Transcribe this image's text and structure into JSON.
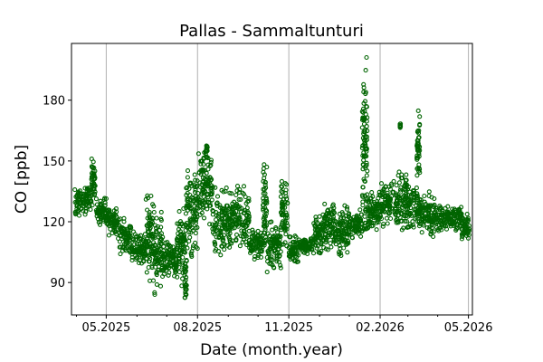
{
  "chart_data": {
    "type": "scatter",
    "title": "Pallas - Sammaltunturi",
    "xlabel": "Date (month.year)",
    "ylabel": "CO [ppb]",
    "x_units": "days since 01.05.2025",
    "xlim": [
      -35,
      369
    ],
    "ylim": [
      74,
      208
    ],
    "grid": "vertical major gridlines",
    "color": "#006400",
    "y_ticks": [
      90,
      120,
      150,
      180
    ],
    "x_ticks": [
      {
        "day": 0,
        "label": "05.2025"
      },
      {
        "day": 92,
        "label": "08.2025"
      },
      {
        "day": 184,
        "label": "11.2025"
      },
      {
        "day": 276,
        "label": "02.2026"
      },
      {
        "day": 365,
        "label": "05.2026"
      }
    ],
    "x_minor_ticks": [
      -30,
      31,
      61,
      123,
      153,
      215,
      245,
      304,
      334
    ],
    "series": [
      {
        "name": "CO",
        "envelope_segments_day_low_high": [
          [
            -32,
            -20,
            123,
            137
          ],
          [
            -20,
            -15,
            126,
            138
          ],
          [
            -15,
            -11,
            128,
            153
          ],
          [
            -10,
            0,
            118,
            132
          ],
          [
            0,
            12,
            113,
            127
          ],
          [
            12,
            25,
            104,
            122
          ],
          [
            25,
            40,
            99,
            116
          ],
          [
            40,
            48,
            90,
            133
          ],
          [
            48,
            57,
            84,
            125
          ],
          [
            57,
            71,
            92,
            110
          ],
          [
            71,
            80,
            88,
            128
          ],
          [
            79,
            81,
            80,
            100
          ],
          [
            80,
            92,
            100,
            148
          ],
          [
            92,
            107,
            118,
            156
          ],
          [
            100,
            102,
            150,
            160
          ],
          [
            107,
            126,
            103,
            138
          ],
          [
            126,
            144,
            107,
            138
          ],
          [
            144,
            158,
            101,
            118
          ],
          [
            158,
            162,
            105,
            149
          ],
          [
            162,
            176,
            95,
            120
          ],
          [
            176,
            183,
            108,
            140
          ],
          [
            184,
            194,
            100,
            113
          ],
          [
            194,
            208,
            104,
            112
          ],
          [
            208,
            217,
            104,
            123
          ],
          [
            217,
            231,
            106,
            130
          ],
          [
            231,
            244,
            103,
            128
          ],
          [
            244,
            258,
            112,
            126
          ],
          [
            258,
            263,
            112,
            202
          ],
          [
            263,
            276,
            115,
            135
          ],
          [
            276,
            294,
            117,
            140
          ],
          [
            294,
            303,
            116,
            145
          ],
          [
            296,
            297,
            166,
            169
          ],
          [
            303,
            317,
            115,
            140
          ],
          [
            313,
            316,
            140,
            177
          ],
          [
            317,
            331,
            112,
            135
          ],
          [
            331,
            358,
            115,
            128
          ],
          [
            358,
            366,
            110,
            124
          ]
        ]
      }
    ]
  }
}
